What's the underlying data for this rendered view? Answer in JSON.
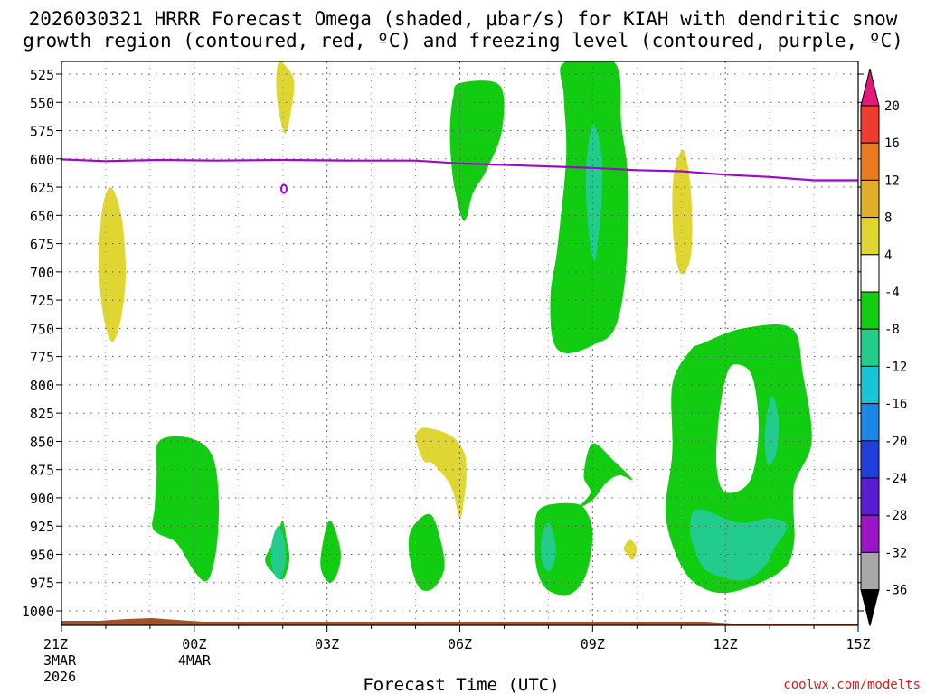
{
  "title_line1": "2026030321 HRRR Forecast Omega (shaded, μbar/s) for KIAH with dendritic snow",
  "title_line2": "growth region (contoured, red, ºC) and freezing level (contoured, purple, ºC)",
  "x_axis_label": "Forecast Time (UTC)",
  "watermark": "coolwx.com/modelts",
  "chart_data": {
    "type": "time-height",
    "x_ticks": [
      {
        "hour": 0,
        "label": "21Z",
        "sub1": "3MAR",
        "sub2": "2026"
      },
      {
        "hour": 3,
        "label": "00Z",
        "sub1": "4MAR",
        "sub2": ""
      },
      {
        "hour": 6,
        "label": "03Z",
        "sub1": "",
        "sub2": ""
      },
      {
        "hour": 9,
        "label": "06Z",
        "sub1": "",
        "sub2": ""
      },
      {
        "hour": 12,
        "label": "09Z",
        "sub1": "",
        "sub2": ""
      },
      {
        "hour": 15,
        "label": "12Z",
        "sub1": "",
        "sub2": ""
      },
      {
        "hour": 18,
        "label": "15Z",
        "sub1": "",
        "sub2": ""
      }
    ],
    "x_range_hours": [
      0,
      18
    ],
    "y_ticks": [
      525,
      550,
      575,
      600,
      625,
      650,
      675,
      700,
      725,
      750,
      775,
      800,
      825,
      850,
      875,
      900,
      925,
      950,
      975,
      1000
    ],
    "y_range_hPa": [
      1012,
      515
    ],
    "colorbar": {
      "labels": [
        "20",
        "16",
        "12",
        "8",
        "4",
        "-4",
        "-8",
        "-12",
        "-16",
        "-20",
        "-24",
        "-28",
        "-32",
        "-36"
      ],
      "colors": [
        "#e2187a",
        "#ee3c2e",
        "#ec7a1e",
        "#e1ac27",
        "#e0d632",
        "#ffffff",
        "#11cc11",
        "#22cc8c",
        "#19c3d8",
        "#1a86e6",
        "#2040dc",
        "#5a1cd0",
        "#9c14c8",
        "#a8a8a8",
        "#000000"
      ]
    },
    "freezing_level": {
      "color": "#9a0ac8",
      "points": [
        [
          0,
          600.5
        ],
        [
          1.0,
          602
        ],
        [
          2.2,
          601
        ],
        [
          3.5,
          601.5
        ],
        [
          5.0,
          601
        ],
        [
          6.5,
          601.5
        ],
        [
          8.0,
          601.5
        ],
        [
          9.0,
          604
        ],
        [
          10.5,
          606
        ],
        [
          12.0,
          608
        ],
        [
          13.0,
          610
        ],
        [
          14.0,
          611
        ],
        [
          15.0,
          614
        ],
        [
          16.0,
          616
        ],
        [
          17.0,
          619
        ],
        [
          18.0,
          619
        ]
      ]
    },
    "omega_regions": [
      {
        "level": "4",
        "color": "#e0d632",
        "points": [
          [
            1.1,
            625
          ],
          [
            1.35,
            650
          ],
          [
            1.45,
            700
          ],
          [
            1.35,
            740
          ],
          [
            1.15,
            762
          ],
          [
            0.95,
            740
          ],
          [
            0.85,
            700
          ],
          [
            0.9,
            650
          ]
        ]
      },
      {
        "level": "4",
        "color": "#e0d632",
        "points": [
          [
            5.0,
            515
          ],
          [
            5.25,
            530
          ],
          [
            5.2,
            555
          ],
          [
            5.05,
            578
          ],
          [
            4.9,
            555
          ],
          [
            4.85,
            530
          ],
          [
            4.9,
            515
          ]
        ]
      },
      {
        "level": "4",
        "color": "#e0d632",
        "points": [
          [
            8.2,
            838
          ],
          [
            8.8,
            845
          ],
          [
            9.1,
            860
          ],
          [
            9.15,
            880
          ],
          [
            9.1,
            900
          ],
          [
            9.0,
            918
          ],
          [
            8.8,
            890
          ],
          [
            8.4,
            870
          ],
          [
            8.2,
            868
          ],
          [
            8.05,
            855
          ],
          [
            8.0,
            845
          ]
        ]
      },
      {
        "level": "4",
        "color": "#e0d632",
        "points": [
          [
            14.05,
            592
          ],
          [
            14.2,
            620
          ],
          [
            14.25,
            660
          ],
          [
            14.2,
            690
          ],
          [
            14.0,
            702
          ],
          [
            13.85,
            680
          ],
          [
            13.8,
            640
          ],
          [
            13.85,
            610
          ]
        ]
      },
      {
        "level": "4",
        "color": "#e0d632",
        "points": [
          [
            12.85,
            937
          ],
          [
            13.0,
            945
          ],
          [
            12.9,
            955
          ],
          [
            12.8,
            950
          ],
          [
            12.7,
            945
          ]
        ]
      },
      {
        "level": "-4",
        "color": "#11cc11",
        "points": [
          [
            2.2,
            850
          ],
          [
            2.9,
            847
          ],
          [
            3.4,
            862
          ],
          [
            3.55,
            900
          ],
          [
            3.5,
            945
          ],
          [
            3.3,
            973
          ],
          [
            3.0,
            965
          ],
          [
            2.6,
            940
          ],
          [
            2.2,
            932
          ],
          [
            2.05,
            925
          ],
          [
            2.1,
            910
          ],
          [
            2.15,
            880
          ]
        ]
      },
      {
        "level": "-4",
        "color": "#11cc11",
        "points": [
          [
            5.0,
            920
          ],
          [
            5.1,
            940
          ],
          [
            5.15,
            955
          ],
          [
            5.0,
            972
          ],
          [
            4.75,
            965
          ],
          [
            4.6,
            955
          ],
          [
            4.75,
            942
          ],
          [
            4.9,
            930
          ]
        ]
      },
      {
        "level": "-4",
        "color": "#11cc11",
        "points": [
          [
            8.05,
            920
          ],
          [
            8.35,
            915
          ],
          [
            8.55,
            935
          ],
          [
            8.65,
            962
          ],
          [
            8.4,
            980
          ],
          [
            8.1,
            980
          ],
          [
            7.9,
            960
          ],
          [
            7.85,
            935
          ]
        ]
      },
      {
        "level": "-4",
        "color": "#11cc11",
        "points": [
          [
            9.0,
            533
          ],
          [
            9.9,
            535
          ],
          [
            9.95,
            575
          ],
          [
            9.6,
            610
          ],
          [
            9.3,
            630
          ],
          [
            9.1,
            655
          ],
          [
            8.9,
            630
          ],
          [
            8.8,
            600
          ],
          [
            8.78,
            570
          ],
          [
            8.85,
            545
          ]
        ]
      },
      {
        "level": "-4",
        "color": "#11cc11",
        "points": [
          [
            11.35,
            515
          ],
          [
            12.5,
            515
          ],
          [
            12.65,
            570
          ],
          [
            12.8,
            620
          ],
          [
            12.75,
            700
          ],
          [
            12.5,
            750
          ],
          [
            12.0,
            765
          ],
          [
            11.4,
            772
          ],
          [
            11.1,
            760
          ],
          [
            11.05,
            720
          ],
          [
            11.2,
            680
          ],
          [
            11.4,
            600
          ],
          [
            11.35,
            545
          ]
        ]
      },
      {
        "level": "-4",
        "color": "#11cc11",
        "points": [
          [
            10.8,
            910
          ],
          [
            11.6,
            905
          ],
          [
            11.9,
            915
          ],
          [
            12.0,
            935
          ],
          [
            11.85,
            968
          ],
          [
            11.5,
            985
          ],
          [
            11.0,
            982
          ],
          [
            10.75,
            965
          ],
          [
            10.7,
            940
          ]
        ]
      },
      {
        "level": "-4",
        "color": "#11cc11",
        "points": [
          [
            11.7,
            908
          ],
          [
            12.0,
            902
          ],
          [
            12.3,
            887
          ],
          [
            12.6,
            880
          ],
          [
            12.9,
            884
          ],
          [
            12.5,
            868
          ],
          [
            12.0,
            852
          ],
          [
            11.8,
            880
          ],
          [
            11.95,
            895
          ]
        ]
      },
      {
        "level": "-4",
        "color": "#11cc11",
        "points": [
          [
            6.05,
            920
          ],
          [
            6.3,
            945
          ],
          [
            6.25,
            965
          ],
          [
            6.05,
            975
          ],
          [
            5.85,
            958
          ]
        ]
      },
      {
        "level": "-4",
        "color": "#11cc11",
        "points": [
          [
            14.5,
            763
          ],
          [
            15.4,
            750
          ],
          [
            16.5,
            750
          ],
          [
            16.75,
            790
          ],
          [
            16.95,
            850
          ],
          [
            16.55,
            890
          ],
          [
            16.55,
            940
          ],
          [
            16.25,
            965
          ],
          [
            15.2,
            983
          ],
          [
            14.5,
            980
          ],
          [
            14.0,
            960
          ],
          [
            13.65,
            915
          ],
          [
            13.8,
            860
          ],
          [
            13.8,
            800
          ],
          [
            14.2,
            770
          ]
        ]
      },
      {
        "level": "-8",
        "color": "#22cc8c",
        "points": [
          [
            4.9,
            925
          ],
          [
            5.05,
            940
          ],
          [
            5.05,
            960
          ],
          [
            4.9,
            972
          ],
          [
            4.75,
            960
          ],
          [
            4.75,
            940
          ]
        ]
      },
      {
        "level": "-8",
        "color": "#22cc8c",
        "points": [
          [
            11.0,
            922
          ],
          [
            11.15,
            938
          ],
          [
            11.15,
            955
          ],
          [
            11.0,
            965
          ],
          [
            10.85,
            955
          ],
          [
            10.85,
            935
          ]
        ]
      },
      {
        "level": "-8",
        "color": "#22cc8c",
        "points": [
          [
            12.0,
            570
          ],
          [
            12.2,
            595
          ],
          [
            12.2,
            640
          ],
          [
            12.05,
            690
          ],
          [
            11.9,
            660
          ],
          [
            11.85,
            610
          ]
        ]
      },
      {
        "level": "-8",
        "color": "#22cc8c",
        "points": [
          [
            14.4,
            910
          ],
          [
            15.3,
            922
          ],
          [
            16.0,
            918
          ],
          [
            16.4,
            925
          ],
          [
            16.1,
            945
          ],
          [
            15.9,
            960
          ],
          [
            15.4,
            973
          ],
          [
            14.6,
            965
          ],
          [
            14.3,
            945
          ],
          [
            14.2,
            925
          ]
        ]
      },
      {
        "level": "-8",
        "color": "#22cc8c",
        "points": [
          [
            16.05,
            810
          ],
          [
            16.2,
            830
          ],
          [
            16.15,
            860
          ],
          [
            15.95,
            870
          ],
          [
            15.9,
            840
          ]
        ]
      },
      {
        "level": "hole",
        "color": "#ffffff",
        "points": [
          [
            15.2,
            782
          ],
          [
            15.6,
            792
          ],
          [
            15.75,
            840
          ],
          [
            15.55,
            885
          ],
          [
            15.0,
            895
          ],
          [
            14.8,
            872
          ],
          [
            14.85,
            830
          ],
          [
            15.0,
            795
          ]
        ]
      }
    ]
  }
}
